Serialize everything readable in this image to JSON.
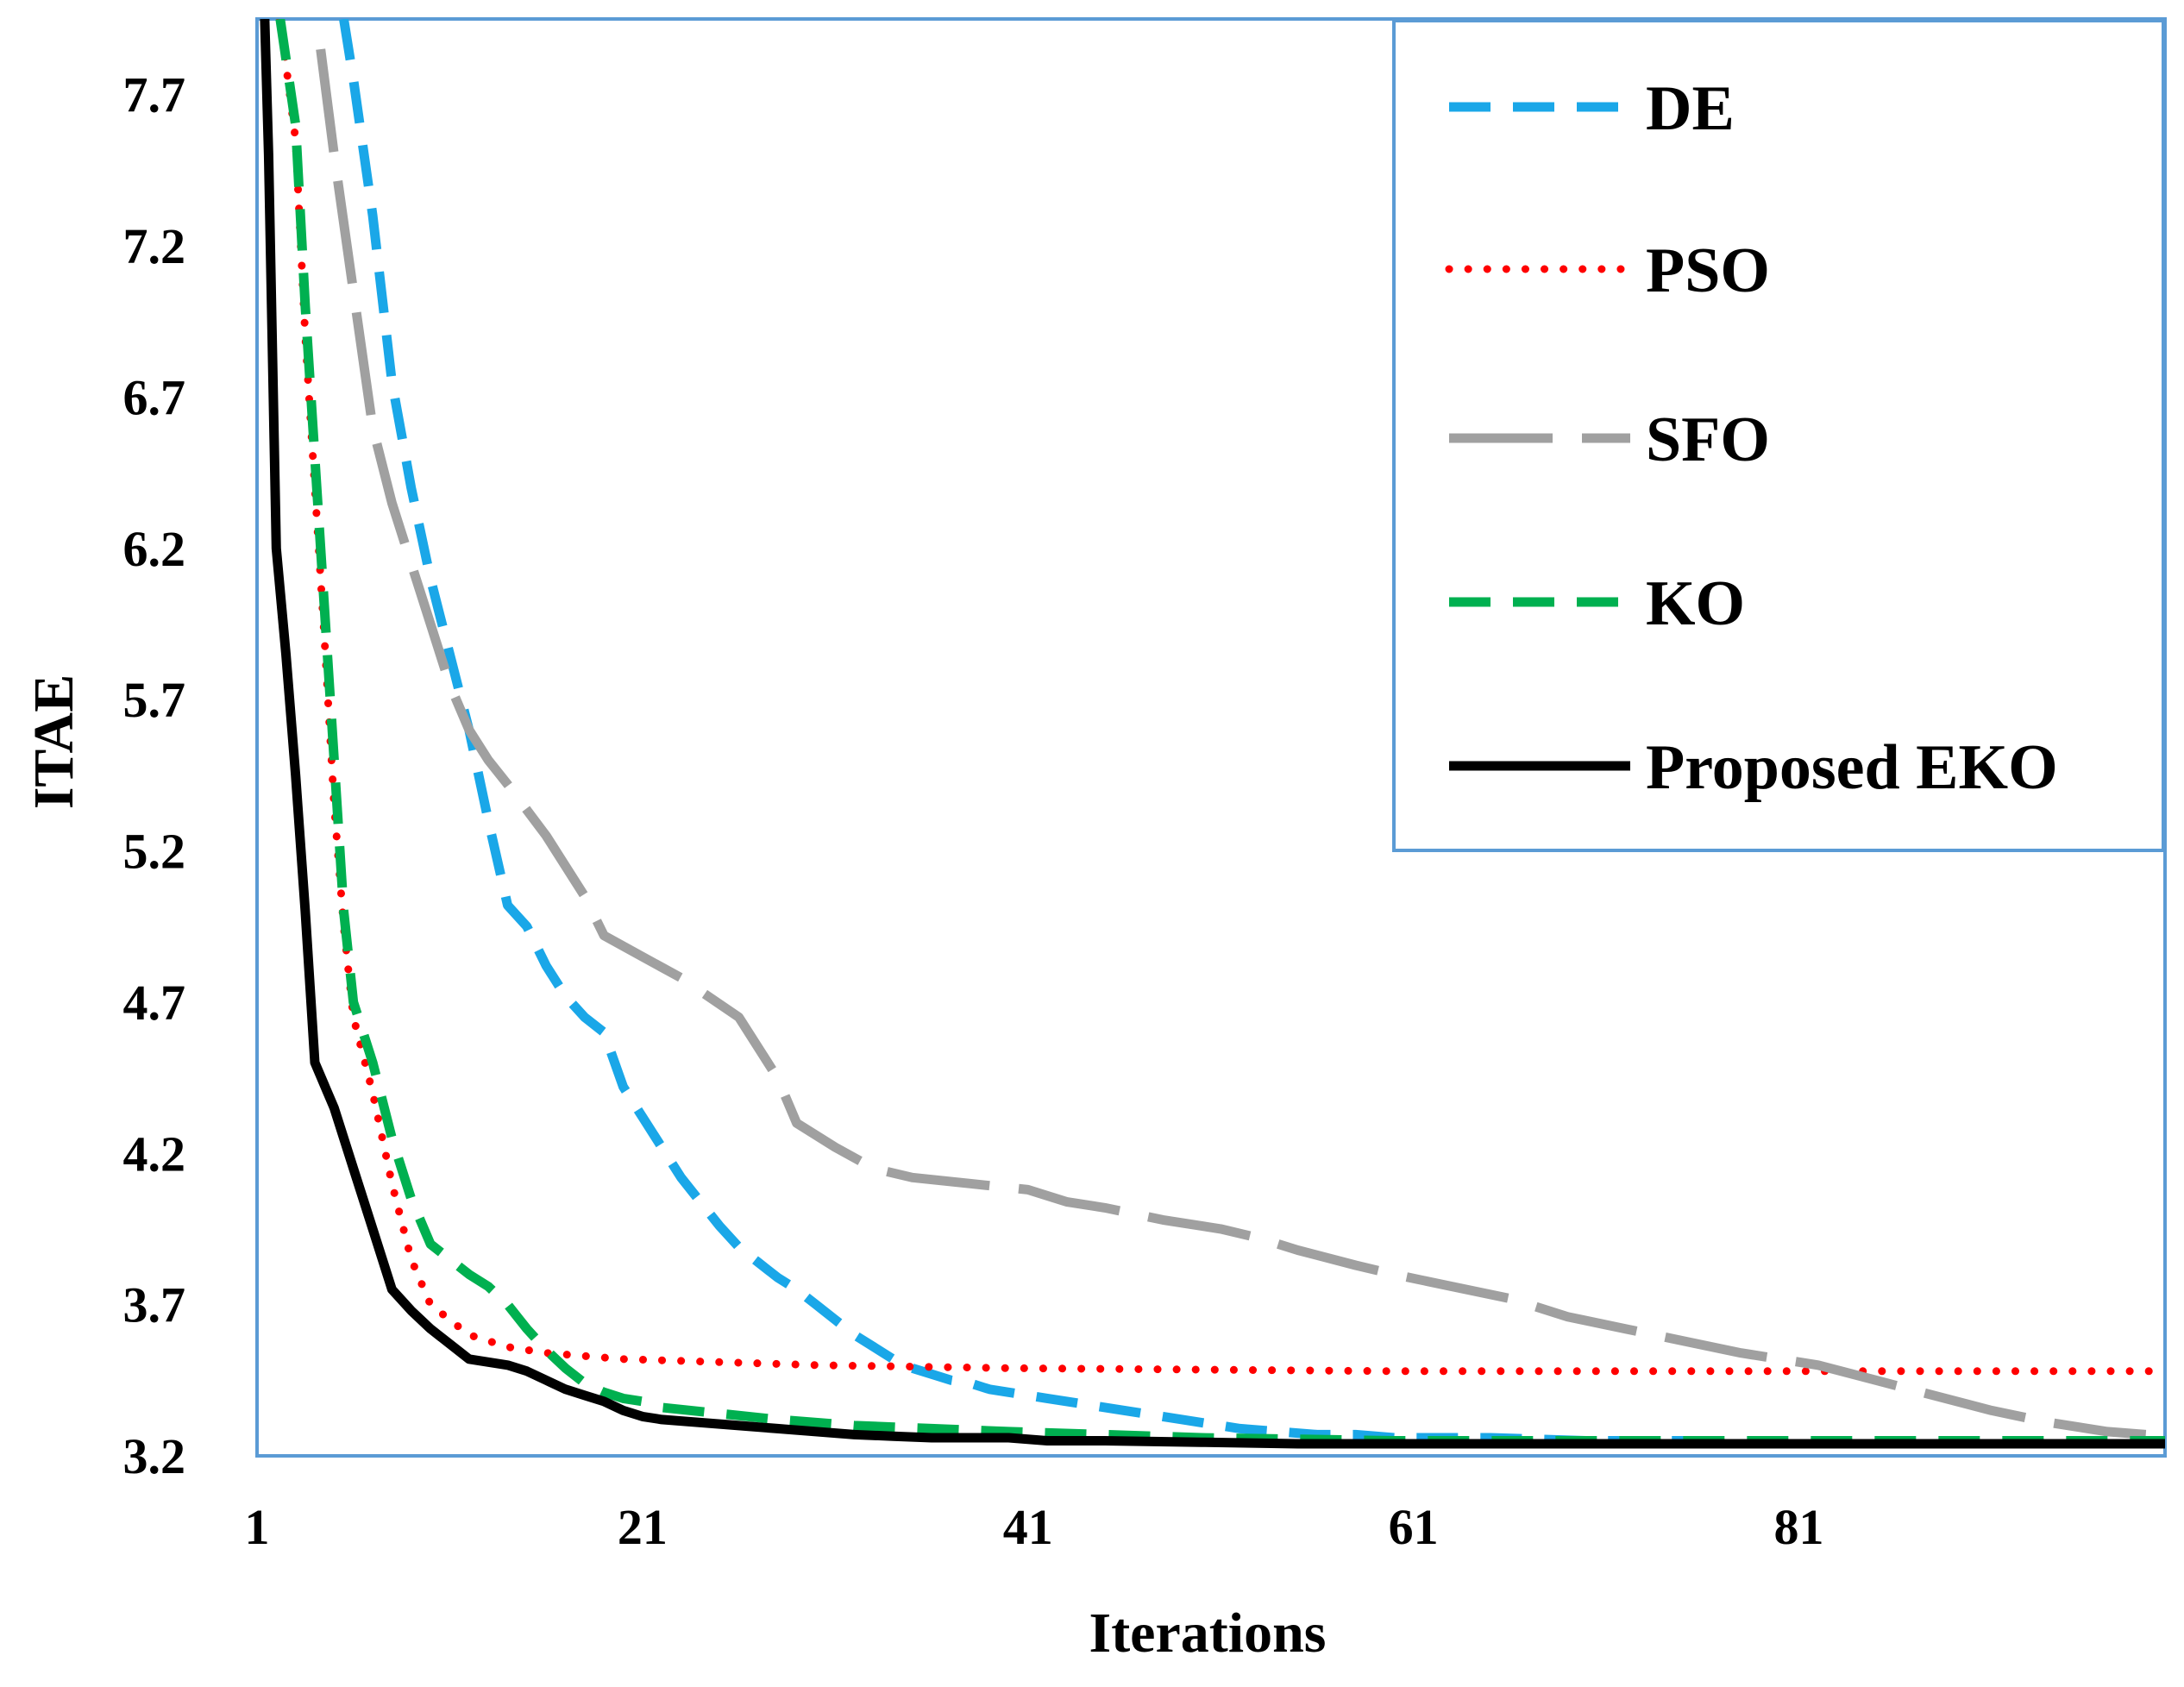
{
  "chart_data": {
    "type": "line",
    "title": "",
    "xlabel": "Iterations",
    "ylabel": "ITAE",
    "xlim": [
      1,
      100
    ],
    "ylim": [
      3.2,
      7.95
    ],
    "x_ticks": [
      1,
      21,
      41,
      61,
      81
    ],
    "y_ticks": [
      3.2,
      3.7,
      4.2,
      4.7,
      5.2,
      5.7,
      6.2,
      6.7,
      7.2,
      7.7
    ],
    "grid": false,
    "legend_position": "top-right",
    "series": [
      {
        "name": "DE",
        "color": "#1aa7e8",
        "style": "dashed",
        "x": [
          5.5,
          6,
          7,
          8,
          9,
          10,
          11,
          12,
          13,
          14,
          15,
          16,
          17,
          18,
          19,
          20,
          21,
          22,
          23,
          24,
          25,
          26,
          27,
          28,
          29,
          30,
          31,
          32,
          33,
          34,
          35,
          36,
          37,
          38,
          39,
          40,
          42,
          44,
          46,
          48,
          50,
          52,
          54,
          56,
          58,
          60,
          65,
          70,
          75,
          77
        ],
        "y": [
          7.95,
          7.75,
          7.3,
          6.75,
          6.4,
          6.1,
          5.85,
          5.6,
          5.3,
          5.02,
          4.95,
          4.82,
          4.72,
          4.65,
          4.6,
          4.42,
          4.32,
          4.22,
          4.12,
          4.04,
          3.96,
          3.89,
          3.84,
          3.79,
          3.75,
          3.7,
          3.65,
          3.6,
          3.56,
          3.52,
          3.49,
          3.47,
          3.45,
          3.44,
          3.42,
          3.41,
          3.39,
          3.37,
          3.35,
          3.33,
          3.31,
          3.29,
          3.28,
          3.27,
          3.27,
          3.26,
          3.26,
          3.25,
          3.25,
          3.25
        ]
      },
      {
        "name": "PSO",
        "color": "#ff0000",
        "style": "dotted",
        "x": [
          2.2,
          3,
          3.5,
          4,
          4.5,
          5,
          5.5,
          6,
          7,
          8,
          9,
          10,
          11,
          12,
          13,
          14,
          15,
          16,
          18,
          20,
          25,
          30,
          40,
          50,
          60,
          70,
          80,
          90,
          100
        ],
        "y": [
          7.95,
          7.55,
          6.9,
          6.4,
          5.9,
          5.35,
          4.95,
          4.65,
          4.4,
          4.1,
          3.85,
          3.7,
          3.65,
          3.6,
          3.58,
          3.56,
          3.55,
          3.54,
          3.53,
          3.52,
          3.51,
          3.5,
          3.49,
          3.485,
          3.48,
          3.48,
          3.48,
          3.48,
          3.48
        ]
      },
      {
        "name": "SFO",
        "color": "#a0a0a0",
        "style": "long-dash",
        "x": [
          4.3,
          5,
          6,
          7,
          8,
          9,
          10,
          11,
          12,
          13,
          14,
          16,
          17,
          18,
          19,
          21,
          23,
          26,
          28,
          29,
          31,
          33,
          35,
          38,
          41,
          43,
          45,
          48,
          51,
          53,
          55,
          58,
          60,
          63,
          66,
          69,
          72,
          75,
          78,
          82,
          85,
          88,
          91,
          94,
          97,
          99
        ],
        "y": [
          7.85,
          7.5,
          7.05,
          6.6,
          6.35,
          6.15,
          5.95,
          5.75,
          5.6,
          5.5,
          5.42,
          5.25,
          5.15,
          5.05,
          4.92,
          4.85,
          4.78,
          4.65,
          4.45,
          4.3,
          4.22,
          4.15,
          4.12,
          4.1,
          4.08,
          4.04,
          4.02,
          3.98,
          3.95,
          3.92,
          3.88,
          3.83,
          3.8,
          3.76,
          3.72,
          3.66,
          3.62,
          3.58,
          3.54,
          3.5,
          3.45,
          3.4,
          3.35,
          3.31,
          3.28,
          3.27
        ]
      },
      {
        "name": "KO",
        "color": "#00b050",
        "style": "dashed",
        "x": [
          2.2,
          3,
          3.5,
          4,
          4.5,
          5,
          5.5,
          6,
          7,
          8,
          9,
          10,
          11,
          12,
          13,
          14,
          15,
          16,
          17,
          18,
          19,
          20,
          21,
          22,
          25,
          28,
          32,
          36,
          40,
          45,
          50,
          55,
          60,
          70,
          80,
          100
        ],
        "y": [
          7.95,
          7.6,
          7.0,
          6.5,
          6.0,
          5.5,
          5.0,
          4.7,
          4.5,
          4.25,
          4.05,
          3.9,
          3.85,
          3.8,
          3.76,
          3.7,
          3.62,
          3.55,
          3.49,
          3.44,
          3.41,
          3.39,
          3.38,
          3.36,
          3.34,
          3.32,
          3.3,
          3.29,
          3.28,
          3.27,
          3.26,
          3.255,
          3.25,
          3.25,
          3.25,
          3.25
        ]
      },
      {
        "name": "Proposed EKO",
        "color": "#000000",
        "style": "solid",
        "x": [
          1.4,
          1.6,
          2,
          2.5,
          3,
          3.5,
          4,
          5,
          6,
          7,
          8,
          9,
          10,
          11,
          12,
          13,
          14,
          15,
          16,
          17,
          18,
          19,
          20,
          21,
          22,
          24,
          26,
          28,
          30,
          32,
          34,
          36,
          38,
          40,
          42,
          45,
          50,
          55,
          60,
          70,
          80,
          90,
          100
        ],
        "y": [
          7.95,
          7.5,
          6.2,
          5.85,
          5.45,
          5.0,
          4.5,
          4.35,
          4.15,
          3.95,
          3.75,
          3.68,
          3.62,
          3.57,
          3.52,
          3.51,
          3.5,
          3.48,
          3.45,
          3.42,
          3.4,
          3.38,
          3.35,
          3.33,
          3.32,
          3.31,
          3.3,
          3.29,
          3.28,
          3.27,
          3.265,
          3.26,
          3.26,
          3.26,
          3.25,
          3.25,
          3.245,
          3.24,
          3.24,
          3.24,
          3.24,
          3.24,
          3.24
        ]
      }
    ]
  }
}
